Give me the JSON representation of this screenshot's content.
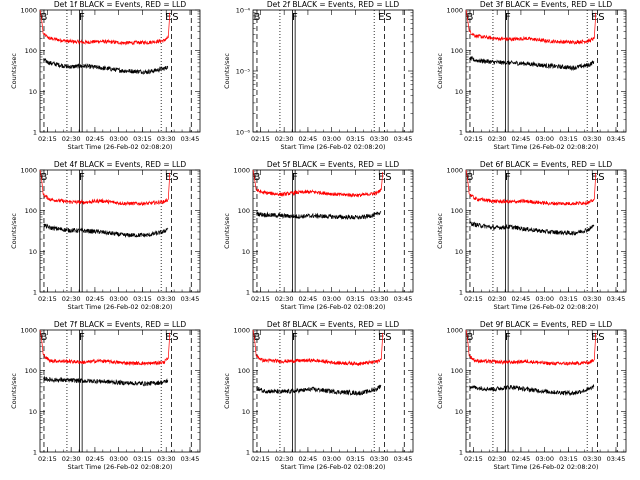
{
  "figure": {
    "xlabel": "Start Time (26-Feb-02 02:08:20)",
    "ylabel": "Counts/sec",
    "time_range_minutes": [
      2.0,
      103.0
    ],
    "x_ticks": [
      {
        "label": "02:15",
        "minutes": 6.67
      },
      {
        "label": "02:30",
        "minutes": 21.67
      },
      {
        "label": "02:45",
        "minutes": 36.67
      },
      {
        "label": "03:00",
        "minutes": 51.67
      },
      {
        "label": "03:15",
        "minutes": 66.67
      },
      {
        "label": "03:30",
        "minutes": 81.67
      },
      {
        "label": "03:45",
        "minutes": 96.67
      }
    ],
    "reference_lines": [
      {
        "kind": "dashed",
        "minutes": 4.5
      },
      {
        "kind": "dotted",
        "minutes": 19.0
      },
      {
        "kind": "solid",
        "minutes": 27.0
      },
      {
        "kind": "solid",
        "minutes": 28.6
      },
      {
        "kind": "dotted",
        "minutes": 78.5
      },
      {
        "kind": "dashed",
        "minutes": 85.0
      },
      {
        "kind": "dashed",
        "minutes": 97.5
      }
    ],
    "markers": [
      {
        "text": "B",
        "minutes": 2.3
      },
      {
        "text": "F",
        "minutes": 26.6
      },
      {
        "text": "E",
        "minutes": 81.0
      },
      {
        "text": "S",
        "minutes": 85.5
      }
    ],
    "colors": {
      "events": "#000000",
      "lld": "#ff0000"
    }
  },
  "chart_data": [
    {
      "type": "line",
      "title": "Det 1f BLACK = Events, RED = LLD",
      "ylim": [
        1,
        1000
      ],
      "y_ticks": [
        {
          "label": "1",
          "value": 1
        },
        {
          "label": "10",
          "value": 10
        },
        {
          "label": "100",
          "value": 100
        },
        {
          "label": "1000",
          "value": 1000
        }
      ],
      "series": [
        {
          "name": "LLD",
          "color": "#ff0000",
          "x": [
            2,
            3,
            4,
            8,
            20,
            30,
            40,
            55,
            70,
            80,
            83,
            84,
            85,
            103
          ],
          "y": [
            1000,
            600,
            260,
            200,
            170,
            160,
            170,
            155,
            160,
            175,
            210,
            1000,
            null,
            null
          ]
        },
        {
          "name": "Events",
          "color": "#000000",
          "x": [
            4,
            8,
            20,
            30,
            40,
            55,
            70,
            80,
            83
          ],
          "y": [
            60,
            50,
            40,
            42,
            38,
            32,
            30,
            36,
            40
          ]
        }
      ]
    },
    {
      "type": "line",
      "title": "Det 2f BLACK = Events, RED = LLD",
      "ylim": [
        1e-06,
        0.0001
      ],
      "y_ticks": [
        {
          "label": "10⁻⁶",
          "value": 1e-06
        },
        {
          "label": "10⁻⁵",
          "value": 1e-05
        },
        {
          "label": "10⁻⁴",
          "value": 0.0001
        }
      ],
      "series": []
    },
    {
      "type": "line",
      "title": "Det 3f BLACK = Events, RED = LLD",
      "ylim": [
        1,
        1000
      ],
      "y_ticks": [
        {
          "label": "1",
          "value": 1
        },
        {
          "label": "10",
          "value": 10
        },
        {
          "label": "100",
          "value": 100
        },
        {
          "label": "1000",
          "value": 1000
        }
      ],
      "series": [
        {
          "name": "LLD",
          "color": "#ff0000",
          "x": [
            2,
            3,
            4,
            8,
            20,
            30,
            40,
            55,
            70,
            80,
            83,
            84
          ],
          "y": [
            1000,
            600,
            300,
            230,
            200,
            190,
            200,
            170,
            160,
            175,
            200,
            1000
          ]
        },
        {
          "name": "Events",
          "color": "#000000",
          "x": [
            4,
            8,
            20,
            30,
            40,
            55,
            70,
            80,
            83
          ],
          "y": [
            65,
            58,
            52,
            50,
            48,
            42,
            38,
            45,
            55
          ]
        }
      ]
    },
    {
      "type": "line",
      "title": "Det 4f BLACK = Events, RED = LLD",
      "ylim": [
        1,
        1000
      ],
      "y_ticks": [
        {
          "label": "1",
          "value": 1
        },
        {
          "label": "10",
          "value": 10
        },
        {
          "label": "100",
          "value": 100
        },
        {
          "label": "1000",
          "value": 1000
        }
      ],
      "series": [
        {
          "name": "LLD",
          "color": "#ff0000",
          "x": [
            2,
            3,
            4,
            8,
            20,
            30,
            40,
            55,
            70,
            80,
            83,
            84
          ],
          "y": [
            1000,
            600,
            250,
            190,
            165,
            160,
            175,
            150,
            150,
            165,
            190,
            1000
          ]
        },
        {
          "name": "Events",
          "color": "#000000",
          "x": [
            4,
            8,
            20,
            30,
            40,
            55,
            70,
            80,
            83
          ],
          "y": [
            45,
            38,
            33,
            32,
            30,
            25,
            25,
            30,
            38
          ]
        }
      ]
    },
    {
      "type": "line",
      "title": "Det 5f BLACK = Events, RED = LLD",
      "ylim": [
        1,
        1000
      ],
      "y_ticks": [
        {
          "label": "1",
          "value": 1
        },
        {
          "label": "10",
          "value": 10
        },
        {
          "label": "100",
          "value": 100
        },
        {
          "label": "1000",
          "value": 1000
        }
      ],
      "series": [
        {
          "name": "LLD",
          "color": "#ff0000",
          "x": [
            2,
            3,
            4,
            8,
            20,
            30,
            40,
            55,
            70,
            80,
            83,
            84
          ],
          "y": [
            1000,
            600,
            320,
            280,
            250,
            280,
            290,
            250,
            240,
            270,
            330,
            1000
          ]
        },
        {
          "name": "Events",
          "color": "#000000",
          "x": [
            4,
            8,
            20,
            30,
            40,
            55,
            70,
            80,
            83
          ],
          "y": [
            85,
            80,
            75,
            72,
            75,
            70,
            68,
            80,
            95
          ]
        }
      ]
    },
    {
      "type": "line",
      "title": "Det 6f BLACK = Events, RED = LLD",
      "ylim": [
        1,
        1000
      ],
      "y_ticks": [
        {
          "label": "1",
          "value": 1
        },
        {
          "label": "10",
          "value": 10
        },
        {
          "label": "100",
          "value": 100
        },
        {
          "label": "1000",
          "value": 1000
        }
      ],
      "series": [
        {
          "name": "LLD",
          "color": "#ff0000",
          "x": [
            2,
            3,
            4,
            8,
            20,
            30,
            40,
            55,
            70,
            80,
            83,
            84
          ],
          "y": [
            1000,
            600,
            260,
            195,
            170,
            165,
            170,
            150,
            150,
            160,
            190,
            1000
          ]
        },
        {
          "name": "Events",
          "color": "#000000",
          "x": [
            4,
            8,
            20,
            30,
            40,
            55,
            70,
            80,
            83
          ],
          "y": [
            50,
            45,
            38,
            40,
            35,
            30,
            28,
            35,
            45
          ]
        }
      ]
    },
    {
      "type": "line",
      "title": "Det 7f BLACK = Events, RED = LLD",
      "ylim": [
        1,
        1000
      ],
      "y_ticks": [
        {
          "label": "1",
          "value": 1
        },
        {
          "label": "10",
          "value": 10
        },
        {
          "label": "100",
          "value": 100
        },
        {
          "label": "1000",
          "value": 1000
        }
      ],
      "series": [
        {
          "name": "LLD",
          "color": "#ff0000",
          "x": [
            2,
            3,
            4,
            8,
            20,
            30,
            40,
            55,
            70,
            80,
            83,
            84
          ],
          "y": [
            1000,
            600,
            250,
            175,
            170,
            160,
            175,
            155,
            150,
            160,
            200,
            1000
          ]
        },
        {
          "name": "Events",
          "color": "#000000",
          "x": [
            4,
            8,
            20,
            30,
            40,
            55,
            70,
            80,
            83
          ],
          "y": [
            65,
            60,
            58,
            56,
            55,
            50,
            48,
            52,
            58
          ]
        }
      ]
    },
    {
      "type": "line",
      "title": "Det 8f BLACK = Events, RED = LLD",
      "ylim": [
        1,
        1000
      ],
      "y_ticks": [
        {
          "label": "1",
          "value": 1
        },
        {
          "label": "10",
          "value": 10
        },
        {
          "label": "100",
          "value": 100
        },
        {
          "label": "1000",
          "value": 1000
        }
      ],
      "series": [
        {
          "name": "LLD",
          "color": "#ff0000",
          "x": [
            2,
            3,
            4,
            8,
            20,
            30,
            40,
            55,
            70,
            80,
            83,
            84
          ],
          "y": [
            1000,
            600,
            230,
            180,
            170,
            175,
            180,
            155,
            150,
            165,
            190,
            1000
          ]
        },
        {
          "name": "Events",
          "color": "#000000",
          "x": [
            4,
            8,
            20,
            30,
            40,
            55,
            70,
            80,
            83
          ],
          "y": [
            38,
            32,
            30,
            32,
            35,
            30,
            28,
            35,
            45
          ]
        }
      ]
    },
    {
      "type": "line",
      "title": "Det 9f BLACK = Events, RED = LLD",
      "ylim": [
        1,
        1000
      ],
      "y_ticks": [
        {
          "label": "1",
          "value": 1
        },
        {
          "label": "10",
          "value": 10
        },
        {
          "label": "100",
          "value": 100
        },
        {
          "label": "1000",
          "value": 1000
        }
      ],
      "series": [
        {
          "name": "LLD",
          "color": "#ff0000",
          "x": [
            2,
            3,
            4,
            8,
            20,
            30,
            40,
            55,
            70,
            80,
            83,
            84
          ],
          "y": [
            1000,
            600,
            230,
            175,
            165,
            160,
            170,
            150,
            150,
            160,
            185,
            1000
          ]
        },
        {
          "name": "Events",
          "color": "#000000",
          "x": [
            4,
            8,
            20,
            30,
            40,
            55,
            70,
            80,
            83
          ],
          "y": [
            42,
            38,
            35,
            40,
            35,
            30,
            28,
            35,
            42
          ]
        }
      ]
    }
  ]
}
